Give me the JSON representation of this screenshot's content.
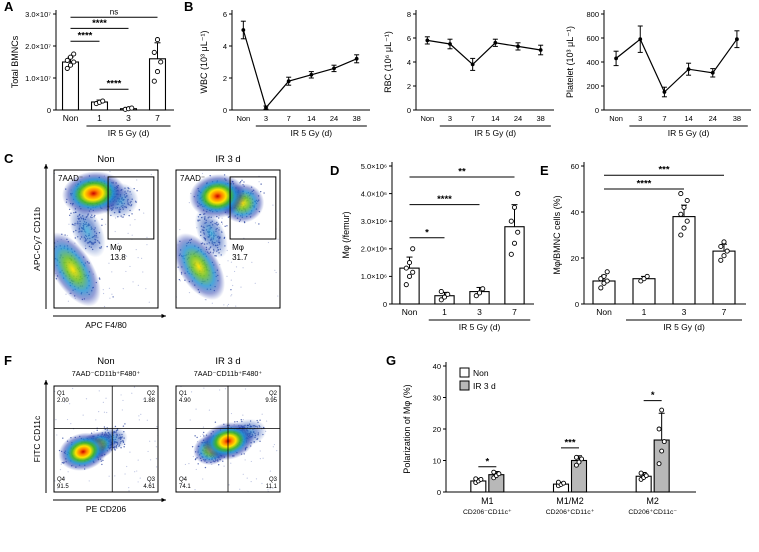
{
  "panels": {
    "A": "A",
    "B": "B",
    "C": "C",
    "D": "D",
    "E": "E",
    "F": "F",
    "G": "G"
  },
  "chart_data": [
    {
      "id": "A",
      "type": "bar",
      "ylabel": "Total BMNCs",
      "categories": [
        "Non",
        "1",
        "3",
        "7"
      ],
      "values": [
        15000000.0,
        2500000.0,
        400000.0,
        16000000.0
      ],
      "errors": [
        1500000.0,
        600000.0,
        200000.0,
        5000000.0
      ],
      "points": [
        [
          13000000.0,
          14000000.0,
          15000000.0,
          15500000.0,
          16500000.0,
          17500000.0
        ],
        [
          2000000.0,
          2400000.0,
          2800000.0
        ],
        [
          200000.0,
          400000.0,
          600000.0
        ],
        [
          9000000.0,
          12000000.0,
          15000000.0,
          18000000.0,
          22000000.0
        ]
      ],
      "ylim": [
        0,
        30000000.0
      ],
      "yticks": [
        0,
        10000000.0,
        20000000.0,
        30000000.0
      ],
      "ytick_labels": [
        "0",
        "1.0×10⁷",
        "2.0×10⁷",
        "3.0×10⁷"
      ],
      "group_label": "IR 5 Gy (d)",
      "group_span": [
        1,
        3
      ],
      "significance": [
        {
          "from": 0,
          "to": 3,
          "label": "ns",
          "y": 29000000.0
        },
        {
          "from": 0,
          "to": 2,
          "label": "****",
          "y": 25500000.0
        },
        {
          "from": 0,
          "to": 1,
          "label": "****",
          "y": 21500000.0
        },
        {
          "from": 1,
          "to": 2,
          "label": "****",
          "y": 6500000.0
        }
      ]
    },
    {
      "id": "B1",
      "type": "line",
      "ylabel": "WBC (10³ μL⁻¹)",
      "categories": [
        "Non",
        "3",
        "7",
        "14",
        "24",
        "38"
      ],
      "values": [
        5.0,
        0.15,
        1.8,
        2.2,
        2.6,
        3.2
      ],
      "errors": [
        0.55,
        0.1,
        0.25,
        0.2,
        0.2,
        0.25
      ],
      "ylim": [
        0,
        6
      ],
      "yticks": [
        0,
        2,
        4,
        6
      ],
      "ytick_labels": [
        "0",
        "2",
        "4",
        "6"
      ],
      "group_label": "IR 5 Gy (d)",
      "group_span": [
        1,
        5
      ]
    },
    {
      "id": "B2",
      "type": "line",
      "ylabel": "RBC (10⁶ μL⁻¹)",
      "categories": [
        "Non",
        "3",
        "7",
        "14",
        "24",
        "38"
      ],
      "values": [
        5.8,
        5.5,
        3.8,
        5.6,
        5.3,
        5.0
      ],
      "errors": [
        0.3,
        0.4,
        0.5,
        0.3,
        0.3,
        0.4
      ],
      "ylim": [
        0,
        8
      ],
      "yticks": [
        0,
        2,
        4,
        6,
        8
      ],
      "ytick_labels": [
        "0",
        "2",
        "4",
        "6",
        "8"
      ],
      "group_label": "IR 5 Gy (d)",
      "group_span": [
        1,
        5
      ]
    },
    {
      "id": "B3",
      "type": "line",
      "ylabel": "Platelet (10³ μL⁻¹)",
      "categories": [
        "Non",
        "3",
        "7",
        "14",
        "24",
        "38"
      ],
      "values": [
        430,
        590,
        150,
        340,
        310,
        590
      ],
      "errors": [
        60,
        110,
        40,
        50,
        35,
        70
      ],
      "ylim": [
        0,
        800
      ],
      "yticks": [
        0,
        200,
        400,
        600,
        800
      ],
      "ytick_labels": [
        "0",
        "200",
        "400",
        "600",
        "800"
      ],
      "group_label": "IR 5 Gy (d)",
      "group_span": [
        1,
        5
      ]
    },
    {
      "id": "C1",
      "type": "scatter",
      "subtype": "flow_density",
      "title": "Non",
      "corner_label": "7AAD⁻",
      "ylabel": "APC-Cy7 CD11b",
      "xlabel": "APC F4/80",
      "gate": {
        "x": 0.52,
        "y": 0.05,
        "w": 0.44,
        "h": 0.45,
        "label": "Mφ",
        "value": "13.8"
      },
      "clusters": [
        {
          "cx": 0.38,
          "cy": 0.17,
          "rx": 0.19,
          "ry": 0.1,
          "rot": -6,
          "heat": "hot"
        },
        {
          "cx": 0.18,
          "cy": 0.72,
          "rx": 0.12,
          "ry": 0.19,
          "rot": -32,
          "heat": "warm"
        },
        {
          "cx": 0.32,
          "cy": 0.44,
          "rx": 0.09,
          "ry": 0.13,
          "rot": -25,
          "heat": "cool"
        },
        {
          "cx": 0.62,
          "cy": 0.22,
          "rx": 0.12,
          "ry": 0.08,
          "rot": -6,
          "heat": "cool"
        }
      ]
    },
    {
      "id": "C2",
      "type": "scatter",
      "subtype": "flow_density",
      "title": "IR 3 d",
      "corner_label": "7AAD⁻",
      "gate": {
        "x": 0.52,
        "y": 0.05,
        "w": 0.44,
        "h": 0.45,
        "label": "Mφ",
        "value": "31.7"
      },
      "clusters": [
        {
          "cx": 0.4,
          "cy": 0.19,
          "rx": 0.17,
          "ry": 0.1,
          "rot": -6,
          "heat": "hot"
        },
        {
          "cx": 0.64,
          "cy": 0.24,
          "rx": 0.13,
          "ry": 0.09,
          "rot": -8,
          "heat": "warm"
        },
        {
          "cx": 0.22,
          "cy": 0.7,
          "rx": 0.12,
          "ry": 0.17,
          "rot": -32,
          "heat": "warm"
        },
        {
          "cx": 0.34,
          "cy": 0.46,
          "rx": 0.08,
          "ry": 0.12,
          "rot": -25,
          "heat": "cool"
        }
      ]
    },
    {
      "id": "D",
      "type": "bar",
      "ylabel": "Mφ (/femur)",
      "categories": [
        "Non",
        "1",
        "3",
        "7"
      ],
      "values": [
        1300000.0,
        300000.0,
        450000.0,
        2800000.0
      ],
      "errors": [
        400000.0,
        120000.0,
        150000.0,
        800000.0
      ],
      "points": [
        [
          700000.0,
          1000000.0,
          1150000.0,
          1300000.0,
          1500000.0,
          2000000.0
        ],
        [
          150000.0,
          250000.0,
          350000.0,
          450000.0
        ],
        [
          300000.0,
          400000.0,
          550000.0
        ],
        [
          1800000.0,
          2200000.0,
          2600000.0,
          3000000.0,
          3500000.0,
          4000000.0
        ]
      ],
      "ylim": [
        0,
        5000000.0
      ],
      "yticks": [
        0,
        1000000.0,
        2000000.0,
        3000000.0,
        4000000.0,
        5000000.0
      ],
      "ytick_labels": [
        "0",
        "1.0×10⁶",
        "2.0×10⁶",
        "3.0×10⁶",
        "4.0×10⁶",
        "5.0×10⁶"
      ],
      "group_label": "IR 5 Gy (d)",
      "group_span": [
        1,
        3
      ],
      "significance": [
        {
          "from": 0,
          "to": 3,
          "label": "**",
          "y": 4600000.0
        },
        {
          "from": 0,
          "to": 2,
          "label": "****",
          "y": 3600000.0
        },
        {
          "from": 0,
          "to": 1,
          "label": "*",
          "y": 2400000.0
        }
      ]
    },
    {
      "id": "E",
      "type": "bar",
      "ylabel": "Mφ/BMNC cells (%)",
      "categories": [
        "Non",
        "1",
        "3",
        "7"
      ],
      "values": [
        10,
        11,
        38,
        23
      ],
      "errors": [
        2.5,
        1,
        5,
        3
      ],
      "points": [
        [
          7,
          9,
          10,
          11,
          12,
          14
        ],
        [
          10,
          11,
          12
        ],
        [
          30,
          33,
          36,
          39,
          42,
          45,
          48
        ],
        [
          19,
          21,
          23,
          25,
          27
        ]
      ],
      "ylim": [
        0,
        60
      ],
      "yticks": [
        0,
        20,
        40,
        60
      ],
      "ytick_labels": [
        "0",
        "20",
        "40",
        "60"
      ],
      "group_label": "IR 5 Gy (d)",
      "group_span": [
        1,
        3
      ],
      "significance": [
        {
          "from": 0,
          "to": 3,
          "label": "***",
          "y": 56
        },
        {
          "from": 0,
          "to": 2,
          "label": "****",
          "y": 50
        }
      ]
    },
    {
      "id": "F1",
      "type": "scatter",
      "subtype": "flow_density",
      "title": "Non",
      "subtitle": "7AAD⁻CD11b⁺F480⁺",
      "ylabel": "FITC CD11c",
      "xlabel": "PE CD206",
      "quad": {
        "x": 0.56,
        "y": 0.4
      },
      "quad_labels": {
        "q1": "Q1",
        "q1v": "2.00",
        "q2": "Q2",
        "q2v": "1.88",
        "q3": "Q3",
        "q3v": "4.61",
        "q4": "Q4",
        "q4v": "91.5"
      },
      "clusters": [
        {
          "cx": 0.28,
          "cy": 0.62,
          "rx": 0.15,
          "ry": 0.11,
          "rot": -15,
          "heat": "hot"
        },
        {
          "cx": 0.42,
          "cy": 0.56,
          "rx": 0.11,
          "ry": 0.08,
          "rot": -15,
          "heat": "warm"
        },
        {
          "cx": 0.55,
          "cy": 0.5,
          "rx": 0.1,
          "ry": 0.07,
          "rot": -10,
          "heat": "cool"
        }
      ]
    },
    {
      "id": "F2",
      "type": "scatter",
      "subtype": "flow_density",
      "title": "IR 3 d",
      "subtitle": "7AAD⁻CD11b⁺F480⁺",
      "quad": {
        "x": 0.5,
        "y": 0.4
      },
      "quad_labels": {
        "q1": "Q1",
        "q1v": "4.90",
        "q2": "Q2",
        "q2v": "9.95",
        "q3": "Q3",
        "q3v": "11.1",
        "q4": "Q4",
        "q4v": "74.1"
      },
      "clusters": [
        {
          "cx": 0.5,
          "cy": 0.52,
          "rx": 0.16,
          "ry": 0.11,
          "rot": -12,
          "heat": "hot"
        },
        {
          "cx": 0.34,
          "cy": 0.6,
          "rx": 0.11,
          "ry": 0.09,
          "rot": -15,
          "heat": "warm"
        },
        {
          "cx": 0.68,
          "cy": 0.44,
          "rx": 0.12,
          "ry": 0.08,
          "rot": -10,
          "heat": "cool"
        }
      ]
    },
    {
      "id": "G",
      "type": "grouped_bar",
      "ylabel": "Polarization of Mφ (%)",
      "categories": [
        {
          "main": "M1",
          "sub": "CD206⁻CD11c⁺"
        },
        {
          "main": "M1/M2",
          "sub": "CD206⁺CD11c⁺"
        },
        {
          "main": "M2",
          "sub": "CD206⁺CD11c⁻"
        }
      ],
      "series": [
        {
          "name": "Non",
          "fill": "#ffffff",
          "values": [
            3.5,
            2.5,
            5.0
          ],
          "errors": [
            0.8,
            0.6,
            1.2
          ],
          "points": [
            [
              3,
              3.5,
              4,
              4.2
            ],
            [
              2,
              2.4,
              2.8,
              3.1
            ],
            [
              4,
              4.6,
              5.2,
              6
            ]
          ]
        },
        {
          "name": "IR 3 d",
          "fill": "#b8b8b8",
          "values": [
            5.5,
            10,
            16.5
          ],
          "errors": [
            1.0,
            1.5,
            8.5
          ],
          "points": [
            [
              4.5,
              5.2,
              5.8,
              6.3
            ],
            [
              8.5,
              9.5,
              10.5,
              11
            ],
            [
              9,
              13,
              16,
              20,
              26
            ]
          ]
        }
      ],
      "ylim": [
        0,
        40
      ],
      "yticks": [
        0,
        10,
        20,
        30,
        40
      ],
      "ytick_labels": [
        "0",
        "10",
        "20",
        "30",
        "40"
      ],
      "significance": [
        {
          "group": 0,
          "label": "*",
          "y": 8
        },
        {
          "group": 1,
          "label": "***",
          "y": 14
        },
        {
          "group": 2,
          "label": "*",
          "y": 29
        }
      ],
      "legend_position": "top-left"
    }
  ]
}
